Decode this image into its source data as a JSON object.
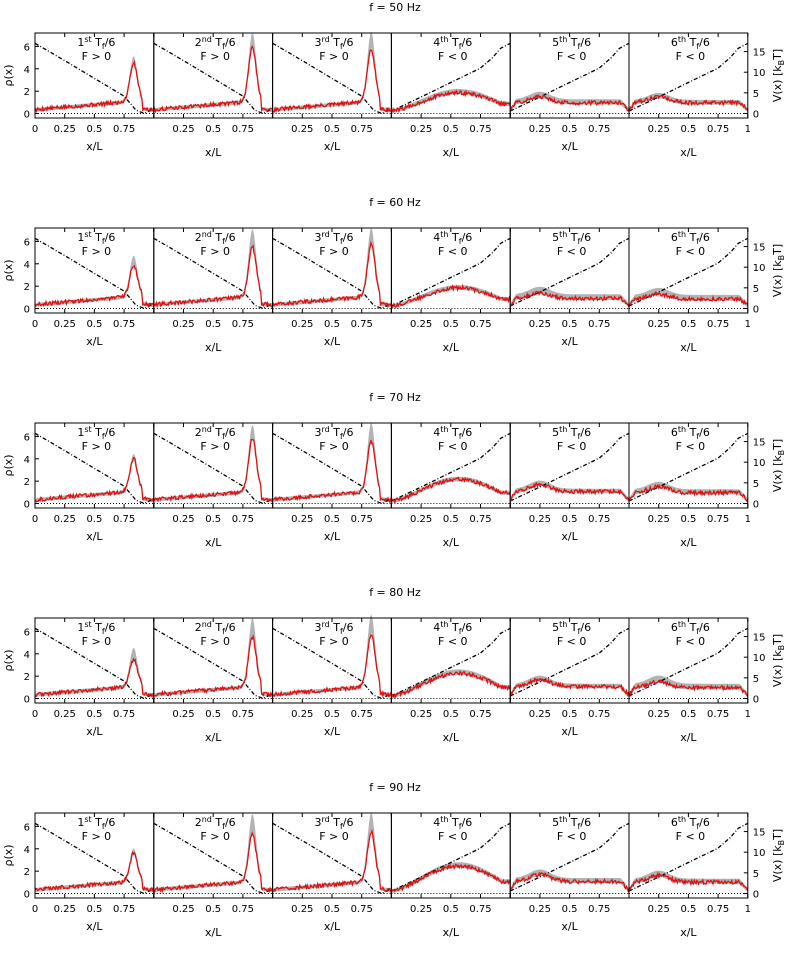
{
  "chart_data": {
    "type": "line",
    "x_axis_label": "x/L",
    "left_axis_label": "ρ(x)",
    "right_axis_label_main": "V(x) [k",
    "right_axis_label_sub": "B",
    "right_axis_label_end": "T]",
    "x_ticks": [
      "0",
      "0.25",
      "0.5",
      "0.75",
      "1"
    ],
    "x_tick_values": [
      0,
      0.25,
      0.5,
      0.75,
      1
    ],
    "left_ticks": [
      0,
      2,
      4,
      6
    ],
    "left_range": [
      -0.4,
      7.2
    ],
    "right_ticks": [
      0,
      5,
      10,
      15
    ],
    "right_range": [
      -1.1,
      19.5
    ],
    "panel_labels": [
      {
        "ord": "1",
        "sup": "st",
        "tail": " T",
        "sub": "f",
        "end": "/6",
        "sign": "F > 0"
      },
      {
        "ord": "2",
        "sup": "nd",
        "tail": " T",
        "sub": "f",
        "end": "/6",
        "sign": "F > 0"
      },
      {
        "ord": "3",
        "sup": "rd",
        "tail": " T",
        "sub": "f",
        "end": "/6",
        "sign": "F > 0"
      },
      {
        "ord": "4",
        "sup": "th",
        "tail": " T",
        "sub": "f",
        "end": "/6",
        "sign": "F < 0"
      },
      {
        "ord": "5",
        "sup": "th",
        "tail": " T",
        "sub": "f",
        "end": "/6",
        "sign": "F < 0"
      },
      {
        "ord": "6",
        "sup": "th",
        "tail": " T",
        "sub": "f",
        "end": "/6",
        "sign": "F < 0"
      }
    ],
    "potential_forward": {
      "x": [
        0,
        0.25,
        0.5,
        0.75,
        0.85,
        0.92,
        1
      ],
      "v": [
        17,
        12.8,
        8.5,
        4.2,
        0.8,
        0.0,
        1.2
      ]
    },
    "potential_backward": {
      "x": [
        0,
        0.25,
        0.5,
        0.75,
        0.85,
        0.92,
        1
      ],
      "v": [
        0.6,
        4.0,
        7.5,
        11.0,
        13.5,
        15.8,
        17.0
      ]
    },
    "rows": [
      {
        "title": "f = 50 Hz",
        "red_peaks": [
          3.4,
          4.8,
          4.7,
          1.6,
          1.2,
          1.2
        ],
        "gray_peaks": [
          3.9,
          6.0,
          6.1,
          1.8,
          1.5,
          1.4
        ]
      },
      {
        "title": "f = 60 Hz",
        "red_peaks": [
          2.8,
          4.4,
          4.6,
          1.6,
          1.1,
          1.0
        ],
        "gray_peaks": [
          3.5,
          5.9,
          6.0,
          1.7,
          1.5,
          1.4
        ]
      },
      {
        "title": "f = 70 Hz",
        "red_peaks": [
          2.9,
          4.7,
          4.5,
          1.9,
          1.4,
          1.2
        ],
        "gray_peaks": [
          3.2,
          5.8,
          6.0,
          2.0,
          1.6,
          1.5
        ]
      },
      {
        "title": "f = 80 Hz",
        "red_peaks": [
          2.4,
          4.4,
          4.6,
          2.0,
          1.4,
          1.2
        ],
        "gray_peaks": [
          3.3,
          6.0,
          6.3,
          2.2,
          1.6,
          1.6
        ]
      },
      {
        "title": "f = 90 Hz",
        "red_peaks": [
          2.5,
          4.2,
          4.4,
          2.2,
          1.4,
          1.3
        ],
        "gray_peaks": [
          2.8,
          5.9,
          6.0,
          2.4,
          1.7,
          1.6
        ]
      }
    ]
  }
}
